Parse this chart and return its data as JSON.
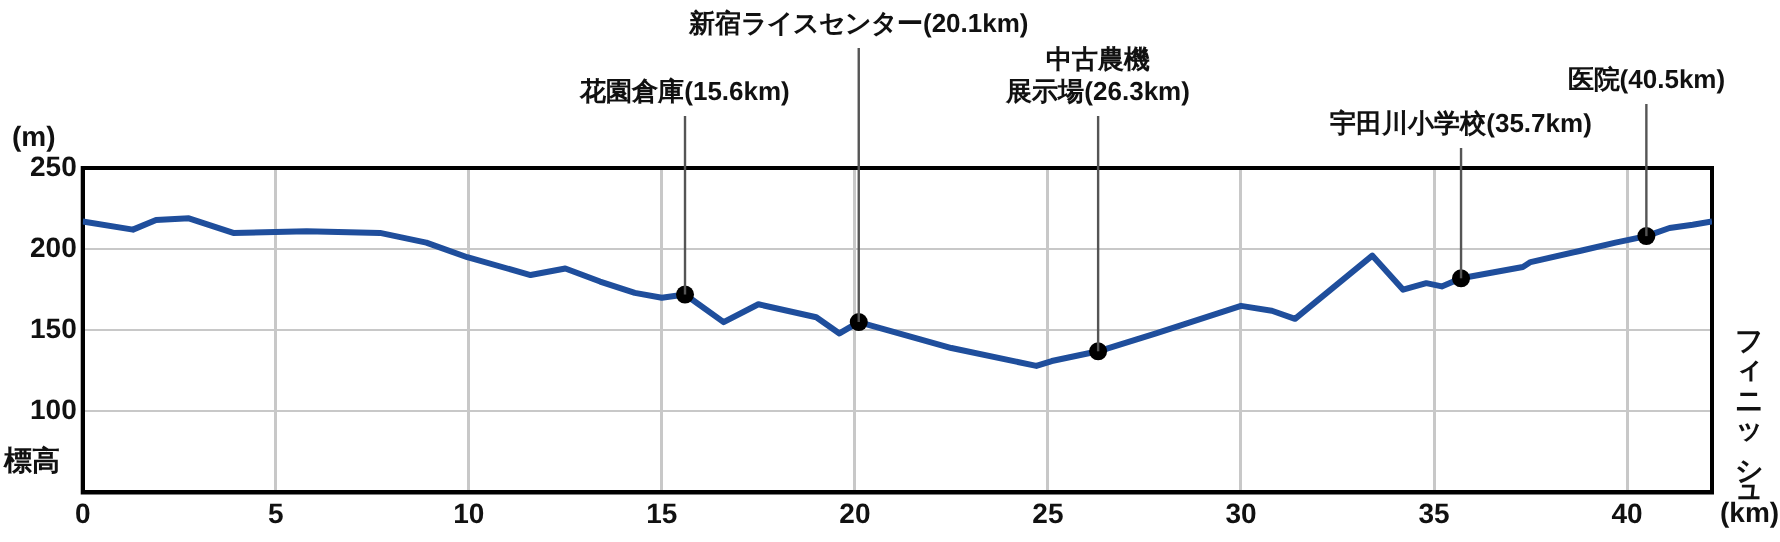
{
  "chart_data": {
    "type": "line",
    "xlabel": "(km)",
    "ylabel": "(m)",
    "xlim": [
      0,
      42.2
    ],
    "ylim": [
      50,
      250
    ],
    "xticks": [
      0,
      5,
      10,
      15,
      20,
      25,
      30,
      35,
      40
    ],
    "yticks": [
      100,
      150,
      200,
      250
    ],
    "grid": true,
    "series": [
      {
        "type": "line",
        "color": "#1f4e9c",
        "marker": "none",
        "x": [
          0,
          1.3,
          1.9,
          2.75,
          3.9,
          5.8,
          7.7,
          8.9,
          9.96,
          11.6,
          12.5,
          13.4,
          14.3,
          15.0,
          15.6,
          16.6,
          17.5,
          19.0,
          19.6,
          20.1,
          22.5,
          24.7,
          25.1,
          26.3,
          27.8,
          30.0,
          30.8,
          31.4,
          33.4,
          34.2,
          34.8,
          35.2,
          35.7,
          37.3,
          37.5,
          38.8,
          39.7,
          40.5,
          41.1,
          41.7,
          42.2
        ],
        "values": [
          217,
          212,
          218,
          219,
          210,
          211,
          210,
          204,
          195,
          184,
          188,
          180,
          173,
          170,
          172,
          155,
          166,
          158,
          148,
          155,
          139,
          128,
          131,
          137,
          148,
          165,
          162,
          157,
          196,
          175,
          179,
          177,
          182,
          189,
          192,
          199,
          204,
          208,
          213,
          215,
          217
        ]
      },
      {
        "type": "scatter",
        "color": "#000000",
        "marker": "circle",
        "x": [
          15.6,
          20.1,
          26.3,
          35.7,
          40.5
        ],
        "values": [
          172,
          155,
          137,
          182,
          208
        ]
      }
    ],
    "annotations": [
      {
        "text": "花園倉庫(15.6km)",
        "x": 15.6,
        "y": 172
      },
      {
        "text": "新宿ライスセンター(20.1km)",
        "x": 20.1,
        "y": 155
      },
      {
        "text": "中古農機展示場(26.3km)",
        "x": 26.3,
        "y": 137
      },
      {
        "text": "宇田川小学校(35.7km)",
        "x": 35.7,
        "y": 182
      },
      {
        "text": "医院(40.5km)",
        "x": 40.5,
        "y": 208
      },
      "標高",
      "フィニッシュ"
    ]
  }
}
